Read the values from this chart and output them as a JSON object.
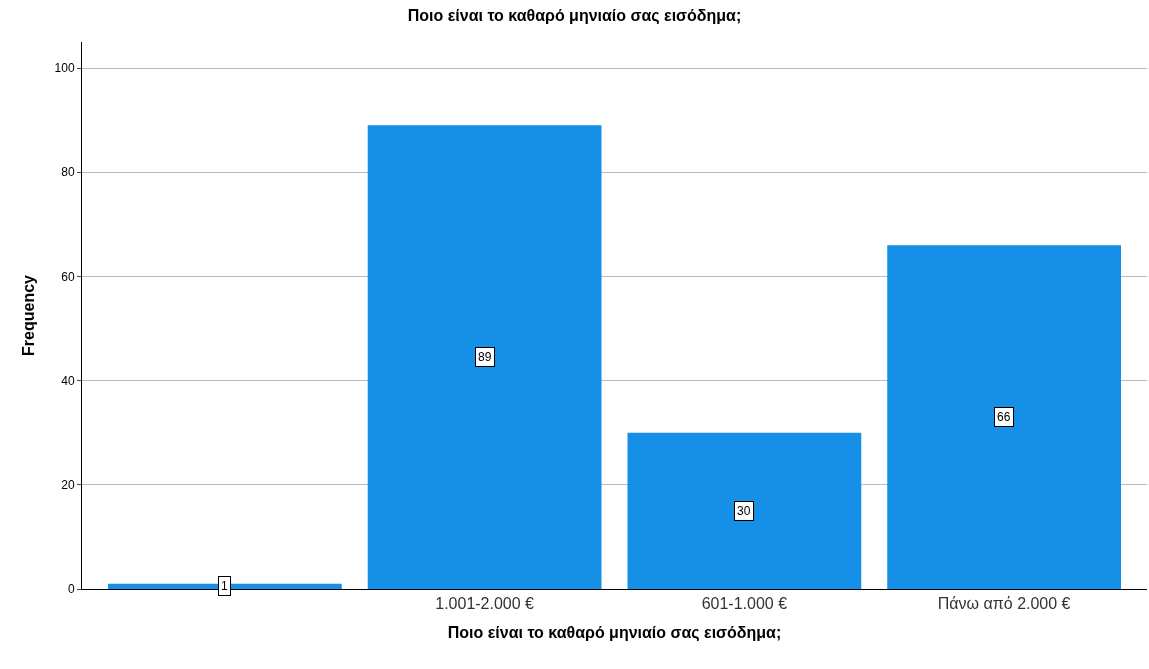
{
  "chart_data": {
    "type": "bar",
    "title": "Ποιο είναι το καθαρό μηνιαίο σας εισόδημα;",
    "xlabel": "Ποιο είναι το καθαρό μηνιαίο σας εισόδημα;",
    "ylabel": "Frequency",
    "categories": [
      null,
      "1.001-2.000 €",
      "601-1.000 €",
      "Πάνω από 2.000 €"
    ],
    "values": [
      1,
      89,
      30,
      66
    ],
    "color": "#1590e6",
    "ylim": [
      0,
      105
    ],
    "yticks": [
      0,
      20,
      40,
      60,
      80,
      100
    ],
    "grid": "y",
    "data_labels": true,
    "legend": false
  }
}
